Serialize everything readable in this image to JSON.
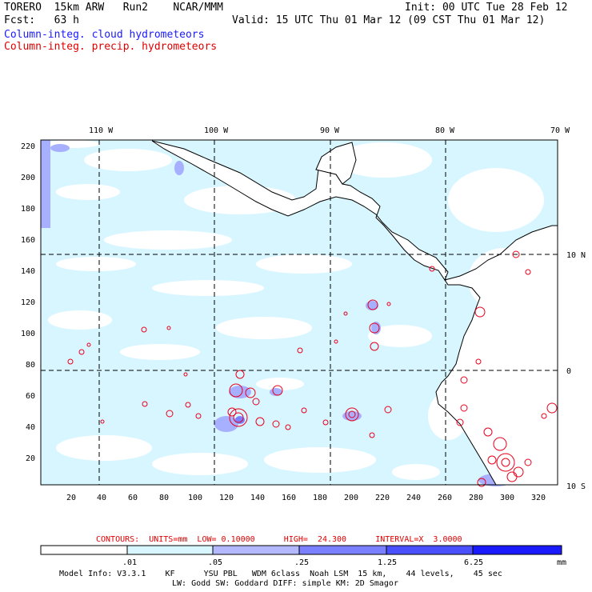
{
  "header": {
    "left1": "TORERO  15km ARW   Run2    NCAR/MMM",
    "left2": "Fcst:   63 h",
    "right1": "Init: 00 UTC Tue 28 Feb 12",
    "right2": "Valid: 15 UTC Thu 01 Mar 12 (09 CST Thu 01 Mar 12)",
    "field1": "Column-integ. cloud hydrometeors",
    "field2": "Column-integ. precip. hydrometeors"
  },
  "map": {
    "lon_labels": [
      "110 W",
      "100 W",
      "90 W",
      "80 W",
      "70 W"
    ],
    "lat_labels": [
      "10 N",
      "0",
      "10 S"
    ],
    "y_ticks": [
      "220",
      "200",
      "180",
      "160",
      "140",
      "120",
      "100",
      "80",
      "60",
      "40",
      "20"
    ],
    "x_ticks": [
      "20",
      "40",
      "60",
      "80",
      "100",
      "120",
      "140",
      "160",
      "180",
      "200",
      "220",
      "240",
      "260",
      "280",
      "300",
      "320"
    ],
    "colors": {
      "light_cyan": "#d8f6ff",
      "light_blue": "#cbe6ff",
      "lavender": "#9fa6ff",
      "mid_blue": "#7a80ff",
      "precip_contour": "#e8001c"
    }
  },
  "footer": {
    "contours": "CONTOURS:  UNITS=mm  LOW= 0.10000      HIGH=  24.300      INTERVAL=X  3.0000",
    "colorbar_labels": [
      ".01",
      ".05",
      ".25",
      "1.25",
      "6.25"
    ],
    "colorbar_colors": [
      "#ffffff",
      "#d8f6ff",
      "#b4b8ff",
      "#7a80ff",
      "#4b50ff",
      "#1a1aff"
    ],
    "units": "mm",
    "model1": "Model Info: V3.3.1    KF      YSU PBL   WDM 6class  Noah LSM  15 km,    44 levels,    45 sec",
    "model2": "LW: Godd SW: Goddard DIFF: simple KM: 2D Smagor"
  }
}
